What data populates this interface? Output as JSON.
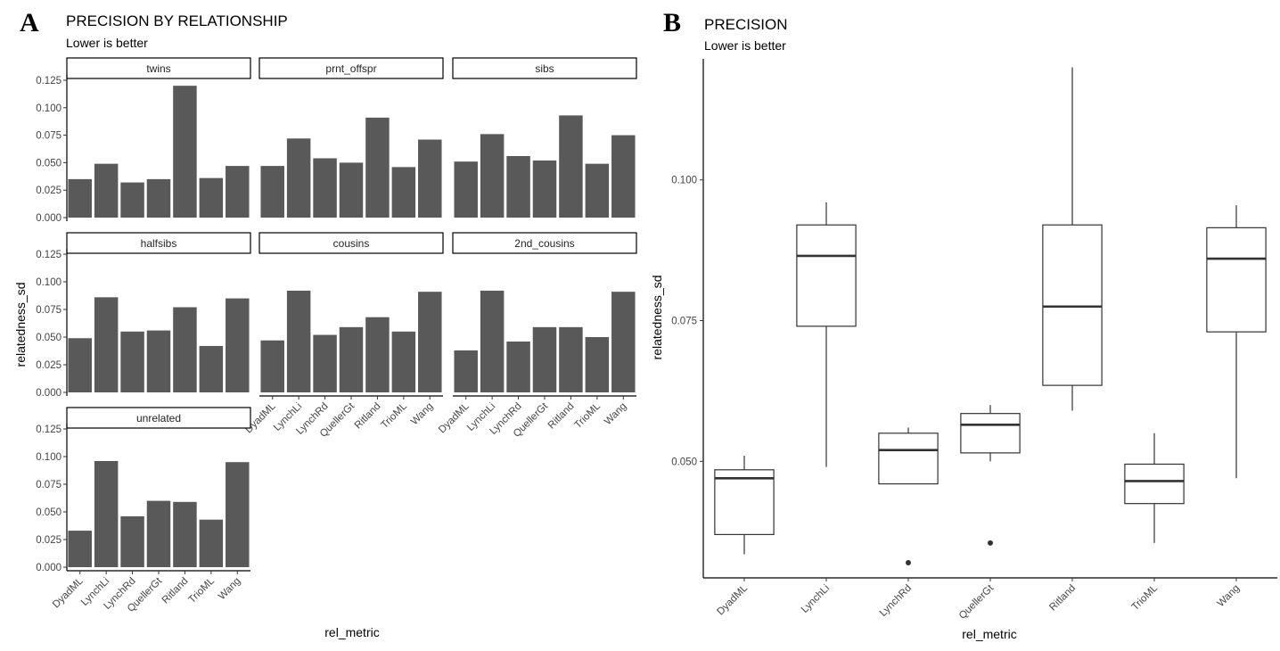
{
  "panel_a": {
    "letter": "A",
    "title": "PRECISION BY RELATIONSHIP",
    "subtitle": "Lower is better"
  },
  "panel_b": {
    "letter": "B",
    "title": "PRECISION",
    "subtitle": "Lower is better"
  },
  "chart_data": [
    {
      "type": "bar",
      "title": "PRECISION BY RELATIONSHIP",
      "subtitle": "Lower is better",
      "xlabel": "rel_metric",
      "ylabel": "relatedness_sd",
      "categories": [
        "DyadML",
        "LynchLi",
        "LynchRd",
        "QuellerGt",
        "Ritland",
        "TrioML",
        "Wang"
      ],
      "ylim": [
        0,
        0.135
      ],
      "yticks": [
        "0.000",
        "0.025",
        "0.050",
        "0.075",
        "0.100",
        "0.125"
      ],
      "bar_color": "#595959",
      "facets": [
        {
          "label": "twins",
          "values": [
            0.035,
            0.049,
            0.032,
            0.035,
            0.12,
            0.036,
            0.047
          ]
        },
        {
          "label": "prnt_offspr",
          "values": [
            0.047,
            0.072,
            0.054,
            0.05,
            0.091,
            0.046,
            0.071
          ]
        },
        {
          "label": "sibs",
          "values": [
            0.051,
            0.076,
            0.056,
            0.052,
            0.093,
            0.049,
            0.075
          ]
        },
        {
          "label": "halfsibs",
          "values": [
            0.049,
            0.086,
            0.055,
            0.056,
            0.077,
            0.042,
            0.085
          ]
        },
        {
          "label": "cousins",
          "values": [
            0.047,
            0.092,
            0.052,
            0.059,
            0.068,
            0.055,
            0.091
          ]
        },
        {
          "label": "2nd_cousins",
          "values": [
            0.038,
            0.092,
            0.046,
            0.059,
            0.059,
            0.05,
            0.091
          ]
        },
        {
          "label": "unrelated",
          "values": [
            0.033,
            0.096,
            0.046,
            0.06,
            0.059,
            0.043,
            0.095
          ]
        }
      ]
    },
    {
      "type": "box",
      "title": "PRECISION",
      "subtitle": "Lower is better",
      "xlabel": "rel_metric",
      "ylabel": "relatedness_sd",
      "categories": [
        "DyadML",
        "LynchLi",
        "LynchRd",
        "QuellerGt",
        "Ritland",
        "TrioML",
        "Wang"
      ],
      "ylim": [
        0.0293,
        0.1215
      ],
      "yticks": [
        "0.050",
        "0.075",
        "0.100"
      ],
      "boxes": [
        {
          "min": 0.0335,
          "q1": 0.037,
          "median": 0.047,
          "q3": 0.0485,
          "max": 0.051,
          "outliers": []
        },
        {
          "min": 0.049,
          "q1": 0.074,
          "median": 0.0865,
          "q3": 0.092,
          "max": 0.096,
          "outliers": []
        },
        {
          "min": 0.046,
          "q1": 0.046,
          "median": 0.052,
          "q3": 0.055,
          "max": 0.056,
          "outliers": [
            0.032
          ]
        },
        {
          "min": 0.05,
          "q1": 0.0515,
          "median": 0.0565,
          "q3": 0.0585,
          "max": 0.06,
          "outliers": [
            0.0355
          ]
        },
        {
          "min": 0.059,
          "q1": 0.0635,
          "median": 0.0775,
          "q3": 0.092,
          "max": 0.12,
          "outliers": []
        },
        {
          "min": 0.0355,
          "q1": 0.0425,
          "median": 0.0465,
          "q3": 0.0495,
          "max": 0.055,
          "outliers": []
        },
        {
          "min": 0.047,
          "q1": 0.073,
          "median": 0.086,
          "q3": 0.0915,
          "max": 0.0955,
          "outliers": []
        }
      ]
    }
  ]
}
